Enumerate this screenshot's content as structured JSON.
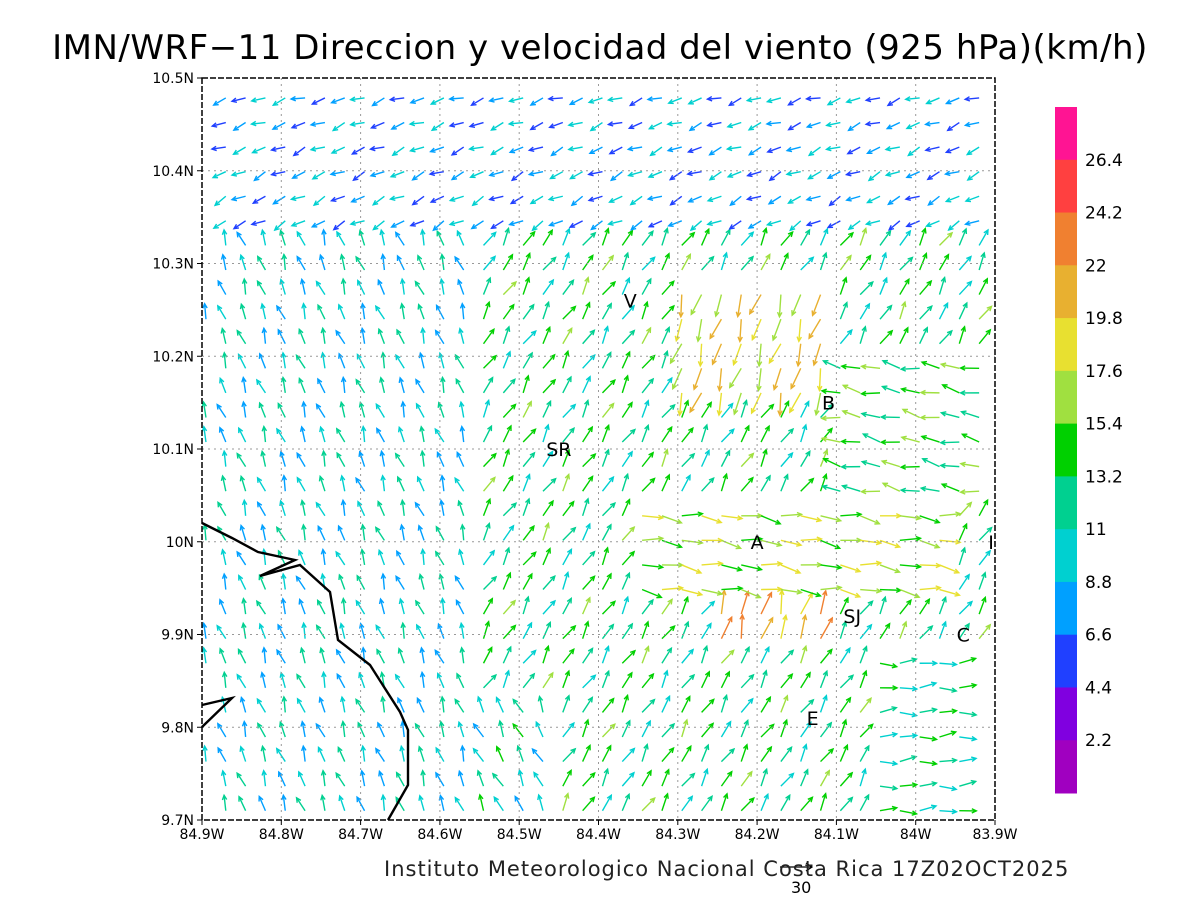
{
  "title": "IMN/WRF−11 Direccion y velocidad del viento (925 hPa)(km/h)",
  "credit": "Instituto Meteorologico Nacional Costa Rica 17Z02OCT2025",
  "reference_vector": {
    "label": "30"
  },
  "axes": {
    "lon_ticks": [
      "84.9W",
      "84.8W",
      "84.7W",
      "84.6W",
      "84.5W",
      "84.4W",
      "84.3W",
      "84.2W",
      "84.1W",
      "84W",
      "83.9W"
    ],
    "lat_ticks": [
      "10.5N",
      "10.4N",
      "10.3N",
      "10.2N",
      "10.1N",
      "10N",
      "9.9N",
      "9.8N",
      "9.7N"
    ],
    "lon_range": [
      -84.9,
      -83.9
    ],
    "lat_range": [
      9.7,
      10.5
    ],
    "grid": "dotted"
  },
  "colorbar": {
    "labels": [
      "26.4",
      "24.2",
      "22",
      "19.8",
      "17.6",
      "15.4",
      "13.2",
      "11",
      "8.8",
      "6.6",
      "4.4",
      "2.2"
    ],
    "colors": [
      "#ff1493",
      "#ff4040",
      "#f08030",
      "#e8b030",
      "#e8e030",
      "#a0e040",
      "#00d000",
      "#00d090",
      "#00d0d0",
      "#00a0ff",
      "#2040ff",
      "#8000e0",
      "#a000c0"
    ]
  },
  "places": [
    {
      "label": "V",
      "lon": -84.36,
      "lat": 10.26
    },
    {
      "label": "B",
      "lon": -84.11,
      "lat": 10.15
    },
    {
      "label": "SR",
      "lon": -84.45,
      "lat": 10.1
    },
    {
      "label": "A",
      "lon": -84.2,
      "lat": 10.0
    },
    {
      "label": "I",
      "lon": -83.905,
      "lat": 10.0
    },
    {
      "label": "SJ",
      "lon": -84.08,
      "lat": 9.92
    },
    {
      "label": "C",
      "lon": -83.94,
      "lat": 9.9
    },
    {
      "label": "E",
      "lon": -84.13,
      "lat": 9.81
    }
  ]
}
